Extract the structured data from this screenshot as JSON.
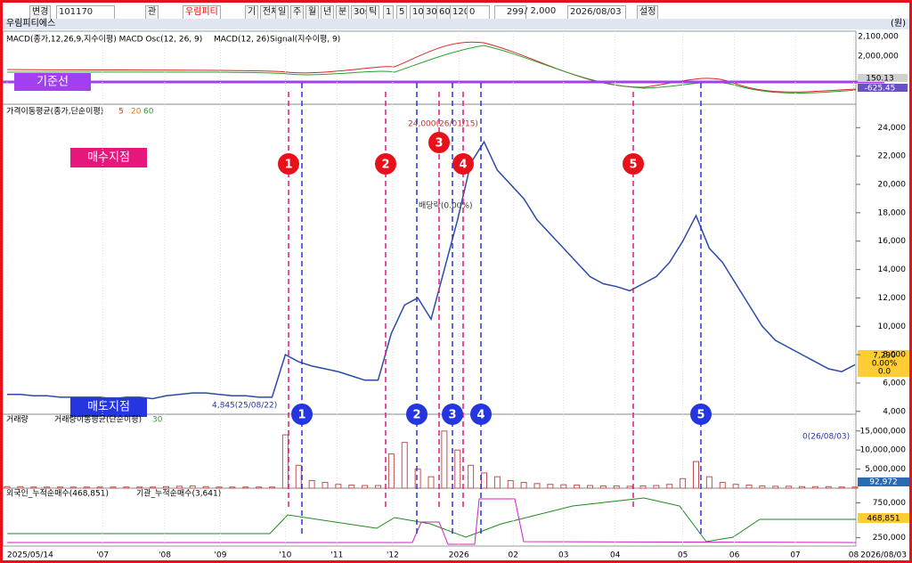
{
  "toolbar": {
    "code": "101170",
    "change": "변경",
    "watch": "관",
    "name": "우림피티",
    "periods": [
      "기",
      "전체",
      "일",
      "주",
      "월",
      "년",
      "분",
      "30s",
      "틱"
    ],
    "range": [
      "1",
      "5",
      "10",
      "30",
      "60",
      "120"
    ],
    "offset": "0",
    "count": "299",
    "total": "/ 2,000",
    "date": "2026/08/03",
    "settings": "설정"
  },
  "title_bar": {
    "name": "우림피티에스",
    "unit": "(원)"
  },
  "chart_data": [
    {
      "type": "macd",
      "title": "MACD(종가,12,26,9,지수이평) MACD Osc(12, 26, 9)",
      "legend": [
        {
          "text": "MACD(12, 26)",
          "color": "#d62728"
        },
        {
          "text": "Signal(지수이평, 9)",
          "color": "#2ca02c"
        }
      ],
      "axis_labels": [
        "2,100,000",
        "2,000,000"
      ],
      "last_labels": [
        "150.13",
        "-625.45"
      ]
    },
    {
      "type": "line",
      "title": "가격이동평균(종가,단순이평)",
      "ma_periods": [
        {
          "text": "5",
          "color": "#d62728"
        },
        {
          "text": "20",
          "color": "#e07b00"
        },
        {
          "text": "60",
          "color": "#2ca02c"
        }
      ],
      "categories": [
        null,
        null,
        null,
        null,
        null,
        null,
        null,
        null,
        null,
        null,
        null,
        null,
        null,
        null,
        null,
        null,
        null,
        null,
        null,
        null,
        null,
        null,
        null,
        null,
        null,
        null,
        null,
        null,
        null,
        null,
        null,
        null,
        null,
        null,
        null,
        null,
        null,
        null,
        null,
        null,
        null,
        null,
        null,
        null,
        null,
        null,
        null,
        null,
        null,
        null,
        null,
        null,
        null,
        null,
        null,
        null,
        null,
        null,
        null,
        null,
        null,
        null,
        null,
        null,
        null
      ],
      "values": [
        5200,
        5200,
        5100,
        5100,
        5000,
        5000,
        5000,
        5000,
        4900,
        5000,
        5000,
        4900,
        5100,
        5200,
        5300,
        5300,
        5200,
        5100,
        5100,
        5000,
        5000,
        8000,
        7500,
        7200,
        7000,
        6800,
        6500,
        6200,
        6200,
        9500,
        11500,
        12000,
        10500,
        14000,
        17500,
        21500,
        23000,
        21000,
        20000,
        19000,
        17500,
        16500,
        15500,
        14500,
        13500,
        13000,
        12800,
        12500,
        13000,
        13500,
        14500,
        16000,
        17800,
        15500,
        14500,
        13000,
        11500,
        10000,
        9000,
        8500,
        8000,
        7500,
        7000,
        6800,
        7290
      ],
      "color": "#2b4aa8",
      "ylim": [
        3800,
        25400
      ],
      "yticks": [
        {
          "value": 4000,
          "label": "4,000"
        },
        {
          "value": 6000,
          "label": "6,000"
        },
        {
          "value": 8000,
          "label": "8,000"
        },
        {
          "value": 10000,
          "label": "10,000"
        },
        {
          "value": 12000,
          "label": "12,000"
        },
        {
          "value": 14000,
          "label": "14,000"
        },
        {
          "value": 16000,
          "label": "16,000"
        },
        {
          "value": 18000,
          "label": "18,000"
        },
        {
          "value": 20000,
          "label": "20,000"
        },
        {
          "value": 22000,
          "label": "22,000"
        },
        {
          "value": 24000,
          "label": "24,000"
        }
      ],
      "xticks": [
        {
          "value": 0,
          "label": "2025/05/14"
        },
        {
          "value": 7.2,
          "label": "'07"
        },
        {
          "value": 11.9,
          "label": "'08"
        },
        {
          "value": 16.1,
          "label": "'09"
        },
        {
          "value": 21,
          "label": "'10"
        },
        {
          "value": 24.9,
          "label": "'11"
        },
        {
          "value": 29.1,
          "label": "'12"
        },
        {
          "value": 34.1,
          "label": "2026"
        },
        {
          "value": 38.2,
          "label": "02"
        },
        {
          "value": 42,
          "label": "03"
        },
        {
          "value": 45.9,
          "label": "04"
        },
        {
          "value": 51,
          "label": "05"
        },
        {
          "value": 54.9,
          "label": "06"
        },
        {
          "value": 59.5,
          "label": "07"
        },
        {
          "value": 63.9,
          "label": "08"
        }
      ],
      "end_date": "2026/08/03",
      "last_labels": [
        "7,290",
        "0.00%",
        "0.0"
      ]
    },
    {
      "type": "bar",
      "title": "거래량",
      "ma_title": "거래량이동평균(단순이평)",
      "ma_period": "30",
      "values": [
        400000,
        400000,
        300000,
        300000,
        300000,
        300000,
        300000,
        300000,
        300000,
        300000,
        300000,
        300000,
        400000,
        500000,
        600000,
        400000,
        300000,
        300000,
        300000,
        300000,
        300000,
        14000000,
        6000000,
        2000000,
        1500000,
        1000000,
        800000,
        700000,
        700000,
        9000000,
        12000000,
        5000000,
        3000000,
        15000000,
        10000000,
        6000000,
        4000000,
        3000000,
        2000000,
        1500000,
        1200000,
        1000000,
        900000,
        800000,
        700000,
        600000,
        600000,
        500000,
        600000,
        700000,
        1000000,
        2500000,
        7000000,
        3000000,
        1500000,
        1000000,
        800000,
        600000,
        500000,
        500000,
        400000,
        400000,
        400000,
        300000,
        300000
      ],
      "color": "#c0504d",
      "ylim": [
        0,
        19400000
      ],
      "yticks": [
        {
          "value": 5000000,
          "label": "5,000,000"
        },
        {
          "value": 10000000,
          "label": "10,000,000"
        },
        {
          "value": 15000000,
          "label": "15,000,000"
        }
      ],
      "last_label": "92,972"
    },
    {
      "type": "investor",
      "legend": [
        {
          "text": "외국인_누적순매수(468,851)",
          "color": "#2ca02c"
        },
        {
          "text": "기관_누적순매수(3,641)",
          "color": "#d020c0"
        }
      ],
      "ylim": [
        130000,
        960000
      ],
      "yticks": [
        {
          "value": 250000,
          "label": "250,000"
        },
        {
          "value": 750000,
          "label": "750,000"
        }
      ],
      "last_label": "468,851"
    }
  ],
  "annotations": {
    "baseline": "기준선",
    "buy_point": "매수지점",
    "sell_point": "매도지점",
    "buy": [
      "1",
      "2",
      "3",
      "4",
      "5"
    ],
    "sell": [
      "1",
      "2",
      "3",
      "4",
      "5"
    ],
    "high": "24,000(26/01/15)",
    "low": "4,845(25/08/22)",
    "dividend": "배당락(0.00%)",
    "volume_note": "0(26/08/03)"
  }
}
